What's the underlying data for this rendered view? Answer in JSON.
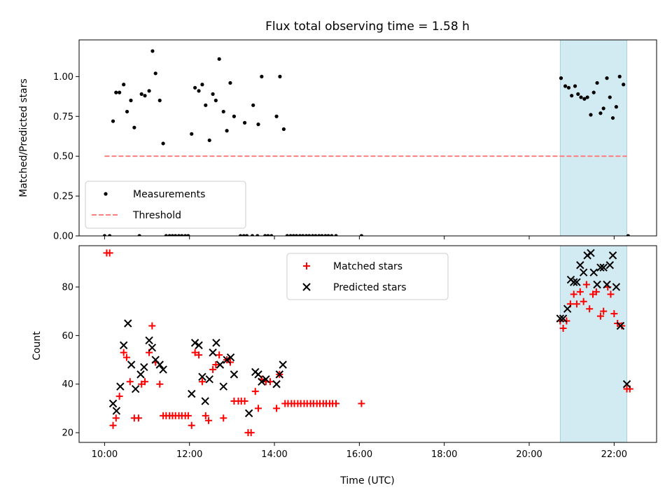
{
  "chart_data": [
    {
      "type": "scatter",
      "title": "Flux total observing time = 1.58 h",
      "ylabel": "Matched/Predicted stars",
      "xlim": [
        9.4,
        23.0
      ],
      "ylim": [
        0,
        1.23
      ],
      "yticks": [
        0.0,
        0.25,
        0.5,
        0.75,
        1.0
      ],
      "ytick_labels": [
        "0.00",
        "0.25",
        "0.50",
        "0.75",
        "1.00"
      ],
      "xticks": [
        10,
        12,
        14,
        16,
        18,
        20,
        22
      ],
      "shaded_span": {
        "x0": 20.73,
        "x1": 22.3,
        "color": "#add8e6"
      },
      "legend": {
        "location": "lower-left",
        "entries": [
          "Measurements",
          "Threshold"
        ]
      },
      "series": [
        {
          "name": "Measurements",
          "marker": "dot",
          "color": "#000000",
          "points": [
            [
              10.0,
              0
            ],
            [
              10.12,
              0
            ],
            [
              10.2,
              0.72
            ],
            [
              10.27,
              0.9
            ],
            [
              10.35,
              0.9
            ],
            [
              10.45,
              0.95
            ],
            [
              10.53,
              0.78
            ],
            [
              10.62,
              0.85
            ],
            [
              10.7,
              0.68
            ],
            [
              10.87,
              0.89
            ],
            [
              10.95,
              0.88
            ],
            [
              11.05,
              0.91
            ],
            [
              11.13,
              1.16
            ],
            [
              11.2,
              1.02
            ],
            [
              11.3,
              0.85
            ],
            [
              11.38,
              0.58
            ],
            [
              10.82,
              0
            ],
            [
              11.45,
              0
            ],
            [
              11.53,
              0
            ],
            [
              11.6,
              0
            ],
            [
              11.67,
              0
            ],
            [
              11.75,
              0
            ],
            [
              11.82,
              0
            ],
            [
              11.9,
              0
            ],
            [
              11.97,
              0
            ],
            [
              12.05,
              0.64
            ],
            [
              12.13,
              0.93
            ],
            [
              12.22,
              0.91
            ],
            [
              12.3,
              0.95
            ],
            [
              12.38,
              0.82
            ],
            [
              12.47,
              0.6
            ],
            [
              12.55,
              0.89
            ],
            [
              12.62,
              0.85
            ],
            [
              12.7,
              1.11
            ],
            [
              12.8,
              0.78
            ],
            [
              12.88,
              0.66
            ],
            [
              12.96,
              0.96
            ],
            [
              13.05,
              0.75
            ],
            [
              13.2,
              0
            ],
            [
              13.28,
              0
            ],
            [
              13.35,
              0
            ],
            [
              13.48,
              0
            ],
            [
              13.6,
              0
            ],
            [
              13.78,
              0
            ],
            [
              13.85,
              0
            ],
            [
              13.93,
              0
            ],
            [
              13.3,
              0.71
            ],
            [
              13.5,
              0.82
            ],
            [
              13.62,
              0.7
            ],
            [
              13.7,
              1.0
            ],
            [
              14.05,
              0.75
            ],
            [
              14.13,
              1.0
            ],
            [
              14.22,
              0.67
            ],
            [
              14.3,
              0
            ],
            [
              14.38,
              0
            ],
            [
              14.45,
              0
            ],
            [
              14.52,
              0
            ],
            [
              14.6,
              0
            ],
            [
              14.67,
              0
            ],
            [
              14.75,
              0
            ],
            [
              14.82,
              0
            ],
            [
              14.9,
              0
            ],
            [
              14.97,
              0
            ],
            [
              15.05,
              0
            ],
            [
              15.12,
              0
            ],
            [
              15.2,
              0
            ],
            [
              15.27,
              0
            ],
            [
              15.35,
              0
            ],
            [
              15.45,
              0
            ],
            [
              16.05,
              0
            ],
            [
              20.75,
              0.99
            ],
            [
              20.85,
              0.94
            ],
            [
              20.93,
              0.93
            ],
            [
              21.0,
              0.88
            ],
            [
              21.08,
              0.94
            ],
            [
              21.15,
              0.89
            ],
            [
              21.22,
              0.87
            ],
            [
              21.3,
              0.86
            ],
            [
              21.37,
              0.87
            ],
            [
              21.45,
              0.76
            ],
            [
              21.52,
              0.9
            ],
            [
              21.6,
              0.96
            ],
            [
              21.68,
              0.77
            ],
            [
              21.75,
              0.8
            ],
            [
              21.83,
              0.99
            ],
            [
              21.9,
              0.87
            ],
            [
              21.97,
              0.74
            ],
            [
              22.05,
              0.81
            ],
            [
              22.13,
              1.0
            ],
            [
              22.22,
              0.95
            ],
            [
              22.33,
              0
            ]
          ]
        },
        {
          "name": "Threshold",
          "style": "dashed",
          "color": "#ff7f7f",
          "points": [
            [
              10.0,
              0.5
            ],
            [
              22.3,
              0.5
            ]
          ]
        }
      ]
    },
    {
      "type": "scatter",
      "xlabel": "Time (UTC)",
      "ylabel": "Count",
      "xlim": [
        9.4,
        23.0
      ],
      "ylim": [
        16,
        97
      ],
      "yticks": [
        20,
        40,
        60,
        80
      ],
      "ytick_labels": [
        "20",
        "40",
        "60",
        "80"
      ],
      "xticks": [
        10,
        12,
        14,
        16,
        18,
        20,
        22
      ],
      "xtick_labels": [
        "10:00",
        "12:00",
        "14:00",
        "16:00",
        "18:00",
        "20:00",
        "22:00"
      ],
      "shaded_span": {
        "x0": 20.73,
        "x1": 22.3,
        "color": "#add8e6"
      },
      "legend": {
        "location": "upper-center",
        "entries": [
          "Matched stars",
          "Predicted stars"
        ]
      },
      "series": [
        {
          "name": "Matched stars",
          "marker": "plus",
          "color": "#ff0000",
          "points": [
            [
              10.05,
              94
            ],
            [
              10.12,
              94
            ],
            [
              10.2,
              23
            ],
            [
              10.27,
              26
            ],
            [
              10.35,
              35
            ],
            [
              10.45,
              53
            ],
            [
              10.52,
              51
            ],
            [
              10.6,
              41
            ],
            [
              10.7,
              26
            ],
            [
              10.8,
              26
            ],
            [
              10.87,
              40
            ],
            [
              10.95,
              41
            ],
            [
              11.05,
              53
            ],
            [
              11.12,
              64
            ],
            [
              11.2,
              49
            ],
            [
              11.3,
              40
            ],
            [
              11.38,
              27
            ],
            [
              11.45,
              27
            ],
            [
              11.53,
              27
            ],
            [
              11.6,
              27
            ],
            [
              11.67,
              27
            ],
            [
              11.75,
              27
            ],
            [
              11.82,
              27
            ],
            [
              11.9,
              27
            ],
            [
              11.97,
              27
            ],
            [
              12.05,
              23
            ],
            [
              12.13,
              53
            ],
            [
              12.22,
              52
            ],
            [
              12.3,
              41
            ],
            [
              12.38,
              27
            ],
            [
              12.45,
              25
            ],
            [
              12.55,
              46
            ],
            [
              12.62,
              48
            ],
            [
              12.7,
              52
            ],
            [
              12.8,
              26
            ],
            [
              12.88,
              50
            ],
            [
              12.96,
              49
            ],
            [
              13.05,
              33
            ],
            [
              13.15,
              33
            ],
            [
              13.22,
              33
            ],
            [
              13.3,
              33
            ],
            [
              13.38,
              20
            ],
            [
              13.45,
              20
            ],
            [
              13.55,
              37
            ],
            [
              13.62,
              30
            ],
            [
              13.7,
              42
            ],
            [
              13.8,
              41
            ],
            [
              13.9,
              41
            ],
            [
              14.05,
              30
            ],
            [
              14.12,
              44
            ],
            [
              14.25,
              32
            ],
            [
              14.32,
              32
            ],
            [
              14.4,
              32
            ],
            [
              14.47,
              32
            ],
            [
              14.55,
              32
            ],
            [
              14.62,
              32
            ],
            [
              14.7,
              32
            ],
            [
              14.77,
              32
            ],
            [
              14.85,
              32
            ],
            [
              14.92,
              32
            ],
            [
              15.0,
              32
            ],
            [
              15.07,
              32
            ],
            [
              15.15,
              32
            ],
            [
              15.22,
              32
            ],
            [
              15.3,
              32
            ],
            [
              15.37,
              32
            ],
            [
              15.45,
              32
            ],
            [
              16.05,
              32
            ],
            [
              20.73,
              66
            ],
            [
              20.8,
              63
            ],
            [
              20.88,
              66
            ],
            [
              20.97,
              73
            ],
            [
              21.05,
              77
            ],
            [
              21.12,
              73
            ],
            [
              21.2,
              78
            ],
            [
              21.28,
              74
            ],
            [
              21.35,
              81
            ],
            [
              21.42,
              71
            ],
            [
              21.5,
              77
            ],
            [
              21.58,
              78
            ],
            [
              21.68,
              68
            ],
            [
              21.75,
              70
            ],
            [
              21.85,
              80
            ],
            [
              21.92,
              77
            ],
            [
              22.0,
              69
            ],
            [
              22.08,
              65
            ],
            [
              22.18,
              64
            ],
            [
              22.3,
              38
            ],
            [
              22.37,
              38
            ]
          ]
        },
        {
          "name": "Predicted stars",
          "marker": "x",
          "color": "#000000",
          "points": [
            [
              10.2,
              32
            ],
            [
              10.28,
              29
            ],
            [
              10.37,
              39
            ],
            [
              10.45,
              56
            ],
            [
              10.55,
              65
            ],
            [
              10.63,
              48
            ],
            [
              10.73,
              38
            ],
            [
              10.85,
              44
            ],
            [
              10.93,
              47
            ],
            [
              11.05,
              58
            ],
            [
              11.12,
              55
            ],
            [
              11.2,
              50
            ],
            [
              11.3,
              48
            ],
            [
              11.38,
              46
            ],
            [
              12.05,
              36
            ],
            [
              12.13,
              57
            ],
            [
              12.22,
              56
            ],
            [
              12.3,
              43
            ],
            [
              12.37,
              33
            ],
            [
              12.47,
              42
            ],
            [
              12.55,
              53
            ],
            [
              12.63,
              57
            ],
            [
              12.72,
              48
            ],
            [
              12.8,
              39
            ],
            [
              12.88,
              50
            ],
            [
              12.97,
              51
            ],
            [
              13.05,
              44
            ],
            [
              13.4,
              28
            ],
            [
              13.55,
              45
            ],
            [
              13.62,
              44
            ],
            [
              13.7,
              41
            ],
            [
              13.8,
              42
            ],
            [
              14.05,
              40
            ],
            [
              14.12,
              44
            ],
            [
              14.2,
              48
            ],
            [
              20.73,
              67
            ],
            [
              20.8,
              67
            ],
            [
              20.9,
              71
            ],
            [
              20.98,
              83
            ],
            [
              21.05,
              82
            ],
            [
              21.12,
              82
            ],
            [
              21.2,
              89
            ],
            [
              21.28,
              86
            ],
            [
              21.37,
              93
            ],
            [
              21.45,
              94
            ],
            [
              21.52,
              86
            ],
            [
              21.6,
              81
            ],
            [
              21.68,
              88
            ],
            [
              21.75,
              88
            ],
            [
              21.83,
              81
            ],
            [
              21.9,
              89
            ],
            [
              21.97,
              93
            ],
            [
              22.05,
              80
            ],
            [
              22.15,
              64
            ],
            [
              22.3,
              40
            ]
          ]
        }
      ]
    }
  ]
}
